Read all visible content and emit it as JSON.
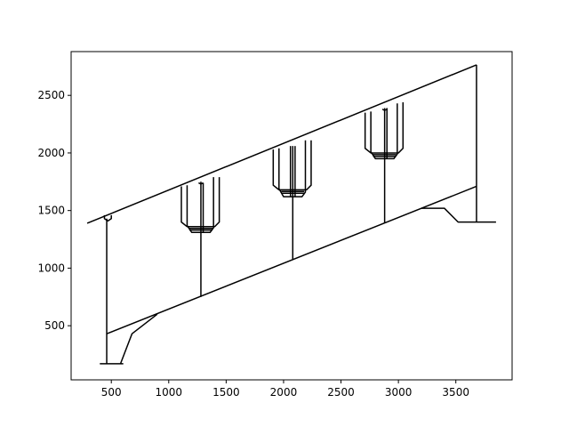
{
  "chart_data": {
    "type": "line",
    "title": "",
    "xlabel": "",
    "ylabel": "",
    "xlim": [
      150,
      3990
    ],
    "ylim": [
      30,
      2880
    ],
    "grid": false,
    "legend": "none",
    "line_color": "#000000",
    "x_ticks": [
      {
        "value": 500,
        "label": "500"
      },
      {
        "value": 1000,
        "label": "1000"
      },
      {
        "value": 1500,
        "label": "1500"
      },
      {
        "value": 2000,
        "label": "2000"
      },
      {
        "value": 2500,
        "label": "2500"
      },
      {
        "value": 3000,
        "label": "3000"
      },
      {
        "value": 3500,
        "label": "3500"
      }
    ],
    "y_ticks": [
      {
        "value": 500,
        "label": "500"
      },
      {
        "value": 1000,
        "label": "1000"
      },
      {
        "value": 1500,
        "label": "1500"
      },
      {
        "value": 2000,
        "label": "2000"
      },
      {
        "value": 2500,
        "label": "2500"
      }
    ],
    "series": [
      {
        "id": "top-chord",
        "x": [
          290,
          3680
        ],
        "y": [
          1390,
          2765
        ]
      },
      {
        "id": "bottom-chord",
        "x": [
          460,
          3680
        ],
        "y": [
          430,
          1710
        ]
      },
      {
        "id": "left-ground",
        "x": [
          400,
          600,
          580,
          680,
          900
        ],
        "y": [
          170,
          170,
          170,
          430,
          600
        ]
      },
      {
        "id": "right-ground",
        "x": [
          3200,
          3400,
          3520,
          3850
        ],
        "y": [
          1520,
          1520,
          1400,
          1400
        ]
      },
      {
        "id": "post-1",
        "x": [
          460,
          460
        ],
        "y": [
          170,
          1430
        ]
      },
      {
        "id": "post-2",
        "x": [
          1280,
          1280
        ],
        "y": [
          750,
          1750
        ]
      },
      {
        "id": "post-3",
        "x": [
          2080,
          2080
        ],
        "y": [
          1070,
          2060
        ]
      },
      {
        "id": "post-4",
        "x": [
          2880,
          2880
        ],
        "y": [
          1390,
          2390
        ]
      },
      {
        "id": "post-5",
        "x": [
          3680,
          3680
        ],
        "y": [
          1400,
          2765
        ]
      },
      {
        "id": "hook-1",
        "x": [
          440,
          440,
          470,
          500,
          500
        ],
        "y": [
          1460,
          1430,
          1410,
          1430,
          1460
        ]
      },
      {
        "id": "hook-2",
        "x": [
          1260,
          1280,
          1300
        ],
        "y": [
          1740,
          1730,
          1740
        ]
      },
      {
        "id": "hook-4",
        "x": [
          2860,
          2880,
          2900
        ],
        "y": [
          2380,
          2370,
          2380
        ]
      },
      {
        "id": "basket-1-outer",
        "x": [
          1110,
          1110,
          1160,
          1400,
          1440,
          1440
        ],
        "y": [
          1710,
          1400,
          1360,
          1360,
          1400,
          1790
        ]
      },
      {
        "id": "basket-1-inner",
        "x": [
          1160,
          1160,
          1200,
          1360,
          1390,
          1390
        ],
        "y": [
          1720,
          1370,
          1310,
          1310,
          1350,
          1790
        ]
      },
      {
        "id": "basket-1-bar-a",
        "x": [
          1180,
          1380
        ],
        "y": [
          1330,
          1330
        ]
      },
      {
        "id": "basket-1-bar-b",
        "x": [
          1180,
          1380
        ],
        "y": [
          1345,
          1345
        ]
      },
      {
        "id": "basket-1-rod",
        "x": [
          1300,
          1300
        ],
        "y": [
          1310,
          1740
        ]
      },
      {
        "id": "basket-2-outer",
        "x": [
          1910,
          1910,
          1960,
          2200,
          2240,
          2240
        ],
        "y": [
          2030,
          1720,
          1680,
          1680,
          1720,
          2110
        ]
      },
      {
        "id": "basket-2-inner",
        "x": [
          1960,
          1960,
          2000,
          2160,
          2190,
          2190
        ],
        "y": [
          2040,
          1690,
          1620,
          1620,
          1660,
          2110
        ]
      },
      {
        "id": "basket-2-bar-a",
        "x": [
          1980,
          2180
        ],
        "y": [
          1650,
          1650
        ]
      },
      {
        "id": "basket-2-bar-b",
        "x": [
          1980,
          2180
        ],
        "y": [
          1665,
          1665
        ]
      },
      {
        "id": "basket-2-rod-a",
        "x": [
          2060,
          2060
        ],
        "y": [
          1620,
          2060
        ]
      },
      {
        "id": "basket-2-rod-b",
        "x": [
          2100,
          2100
        ],
        "y": [
          1620,
          2060
        ]
      },
      {
        "id": "basket-3-outer",
        "x": [
          2710,
          2710,
          2760,
          3000,
          3040,
          3040
        ],
        "y": [
          2350,
          2040,
          2000,
          2000,
          2040,
          2440
        ]
      },
      {
        "id": "basket-3-inner",
        "x": [
          2760,
          2760,
          2800,
          2960,
          2990,
          2990
        ],
        "y": [
          2360,
          2010,
          1950,
          1950,
          1990,
          2430
        ]
      },
      {
        "id": "basket-3-bar-a",
        "x": [
          2780,
          2980
        ],
        "y": [
          1970,
          1970
        ]
      },
      {
        "id": "basket-3-bar-b",
        "x": [
          2780,
          2980
        ],
        "y": [
          1985,
          1985
        ]
      },
      {
        "id": "basket-3-rod",
        "x": [
          2900,
          2900
        ],
        "y": [
          1950,
          2390
        ]
      }
    ]
  }
}
